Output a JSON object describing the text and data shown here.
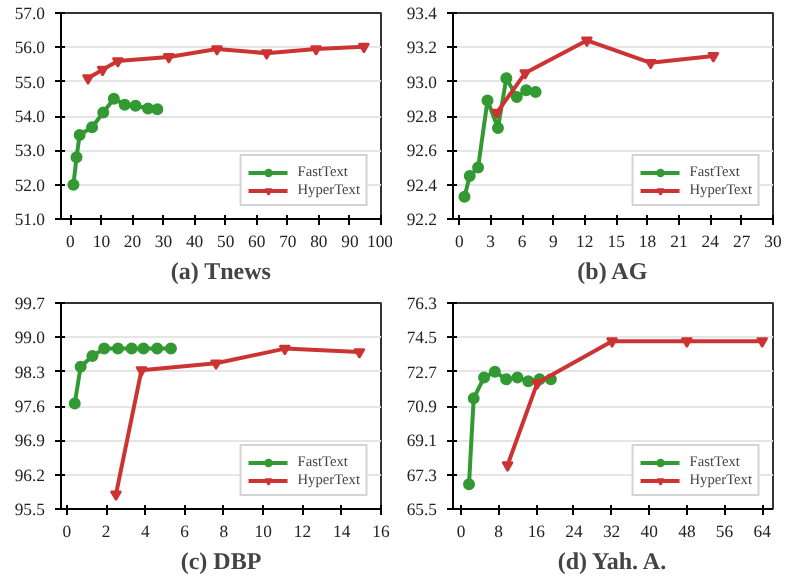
{
  "chart_data": [
    {
      "type": "line",
      "xlabel": "(a) Tnews",
      "xlim": [
        -3,
        100
      ],
      "xticks": [
        0,
        10,
        20,
        30,
        40,
        50,
        60,
        70,
        80,
        90,
        100
      ],
      "ylim": [
        51.0,
        57.0
      ],
      "yticks": [
        {
          "value": 51,
          "label": "51.0"
        },
        {
          "value": 52,
          "label": "52.0"
        },
        {
          "value": 53,
          "label": "53.0"
        },
        {
          "value": 54,
          "label": "54.0"
        },
        {
          "value": 55,
          "label": "55.0"
        },
        {
          "value": 56,
          "label": "56.0"
        },
        {
          "value": 57,
          "label": "57.0"
        }
      ],
      "grid": "y",
      "legend": "bottom right",
      "line_style": "solid",
      "series": [
        {
          "name": "FastText",
          "color": "#339933",
          "marker": "circle",
          "x": [
            1,
            2,
            3,
            7,
            10.6,
            14,
            17.5,
            21,
            25,
            28
          ],
          "values": [
            52.0,
            52.8,
            53.45,
            53.67,
            54.1,
            54.5,
            54.33,
            54.3,
            54.22,
            54.2
          ]
        },
        {
          "name": "HyperText",
          "color": "#cc3333",
          "marker": "triangle",
          "x": [
            5.7,
            10.4,
            15.3,
            31.7,
            47.2,
            63.2,
            79.1,
            94.5
          ],
          "values": [
            55.1,
            55.35,
            55.6,
            55.72,
            55.95,
            55.83,
            55.95,
            56.02
          ]
        }
      ]
    },
    {
      "type": "line",
      "xlabel": "(b) AG",
      "xlim": [
        -0.6,
        30
      ],
      "xticks": [
        0,
        3,
        6,
        9,
        12,
        15,
        18,
        21,
        24,
        27,
        30
      ],
      "ylim": [
        92.2,
        93.4
      ],
      "yticks": [
        92.2,
        92.4,
        92.6,
        92.8,
        {
          "value": 93,
          "label": "93.0"
        },
        93.2,
        93.4
      ],
      "grid": "y",
      "legend": "bottom right",
      "line_style": "solid",
      "series": [
        {
          "name": "FastText",
          "color": "#339933",
          "marker": "circle",
          "x": [
            0.5,
            1.0,
            1.8,
            2.7,
            3.7,
            4.5,
            5.5,
            6.4,
            7.3
          ],
          "values": [
            92.33,
            92.45,
            92.5,
            92.89,
            92.73,
            93.02,
            92.91,
            92.95,
            92.94
          ]
        },
        {
          "name": "HyperText",
          "color": "#cc3333",
          "marker": "triangle",
          "x": [
            3.6,
            6.3,
            12.2,
            18.3,
            24.3
          ],
          "values": [
            92.82,
            93.05,
            93.24,
            93.11,
            93.15
          ]
        }
      ]
    },
    {
      "type": "line",
      "xlabel": "(c) DBP",
      "xlim": [
        -0.3,
        16
      ],
      "xticks": [
        0,
        2,
        4,
        6,
        8,
        10,
        12,
        14,
        16
      ],
      "ylim": [
        95.5,
        99.7
      ],
      "yticks": [
        95.5,
        96.2,
        96.9,
        97.6,
        98.3,
        {
          "value": 99,
          "label": "99.0"
        },
        99.7
      ],
      "grid": "y",
      "legend": "bottom right",
      "line_style": "solid",
      "series": [
        {
          "name": "FastText",
          "color": "#339933",
          "marker": "circle",
          "x": [
            0.4,
            0.7,
            1.3,
            1.9,
            2.6,
            3.3,
            3.9,
            4.6,
            5.3
          ],
          "values": [
            97.65,
            98.4,
            98.62,
            98.77,
            98.77,
            98.77,
            98.77,
            98.77,
            98.77
          ]
        },
        {
          "name": "HyperText",
          "color": "#cc3333",
          "marker": "triangle",
          "x": [
            2.5,
            3.8,
            7.6,
            11.1,
            14.9
          ],
          "values": [
            95.8,
            98.33,
            98.47,
            98.77,
            98.7
          ]
        }
      ]
    },
    {
      "type": "line",
      "xlabel": "(d) Yah. A.",
      "xlim": [
        -1.7,
        66.3
      ],
      "xticks": [
        0,
        8,
        16,
        24,
        32,
        40,
        48,
        56,
        64
      ],
      "ylim": [
        65.5,
        76.3
      ],
      "yticks": [
        65.5,
        67.3,
        69.1,
        70.9,
        72.7,
        74.5,
        76.3
      ],
      "grid": "y",
      "legend": "bottom right",
      "line_style": "solid",
      "series": [
        {
          "name": "FastText",
          "color": "#339933",
          "marker": "circle",
          "x": [
            1.7,
            2.7,
            4.9,
            7.2,
            9.6,
            12,
            14.3,
            16.7,
            19.1
          ],
          "values": [
            66.8,
            71.3,
            72.4,
            72.7,
            72.3,
            72.4,
            72.2,
            72.3,
            72.3
          ]
        },
        {
          "name": "HyperText",
          "color": "#cc3333",
          "marker": "triangle",
          "x": [
            9.9,
            16.2,
            32.1,
            48,
            64
          ],
          "values": [
            67.8,
            72.1,
            74.3,
            74.3,
            74.3
          ]
        }
      ]
    }
  ]
}
